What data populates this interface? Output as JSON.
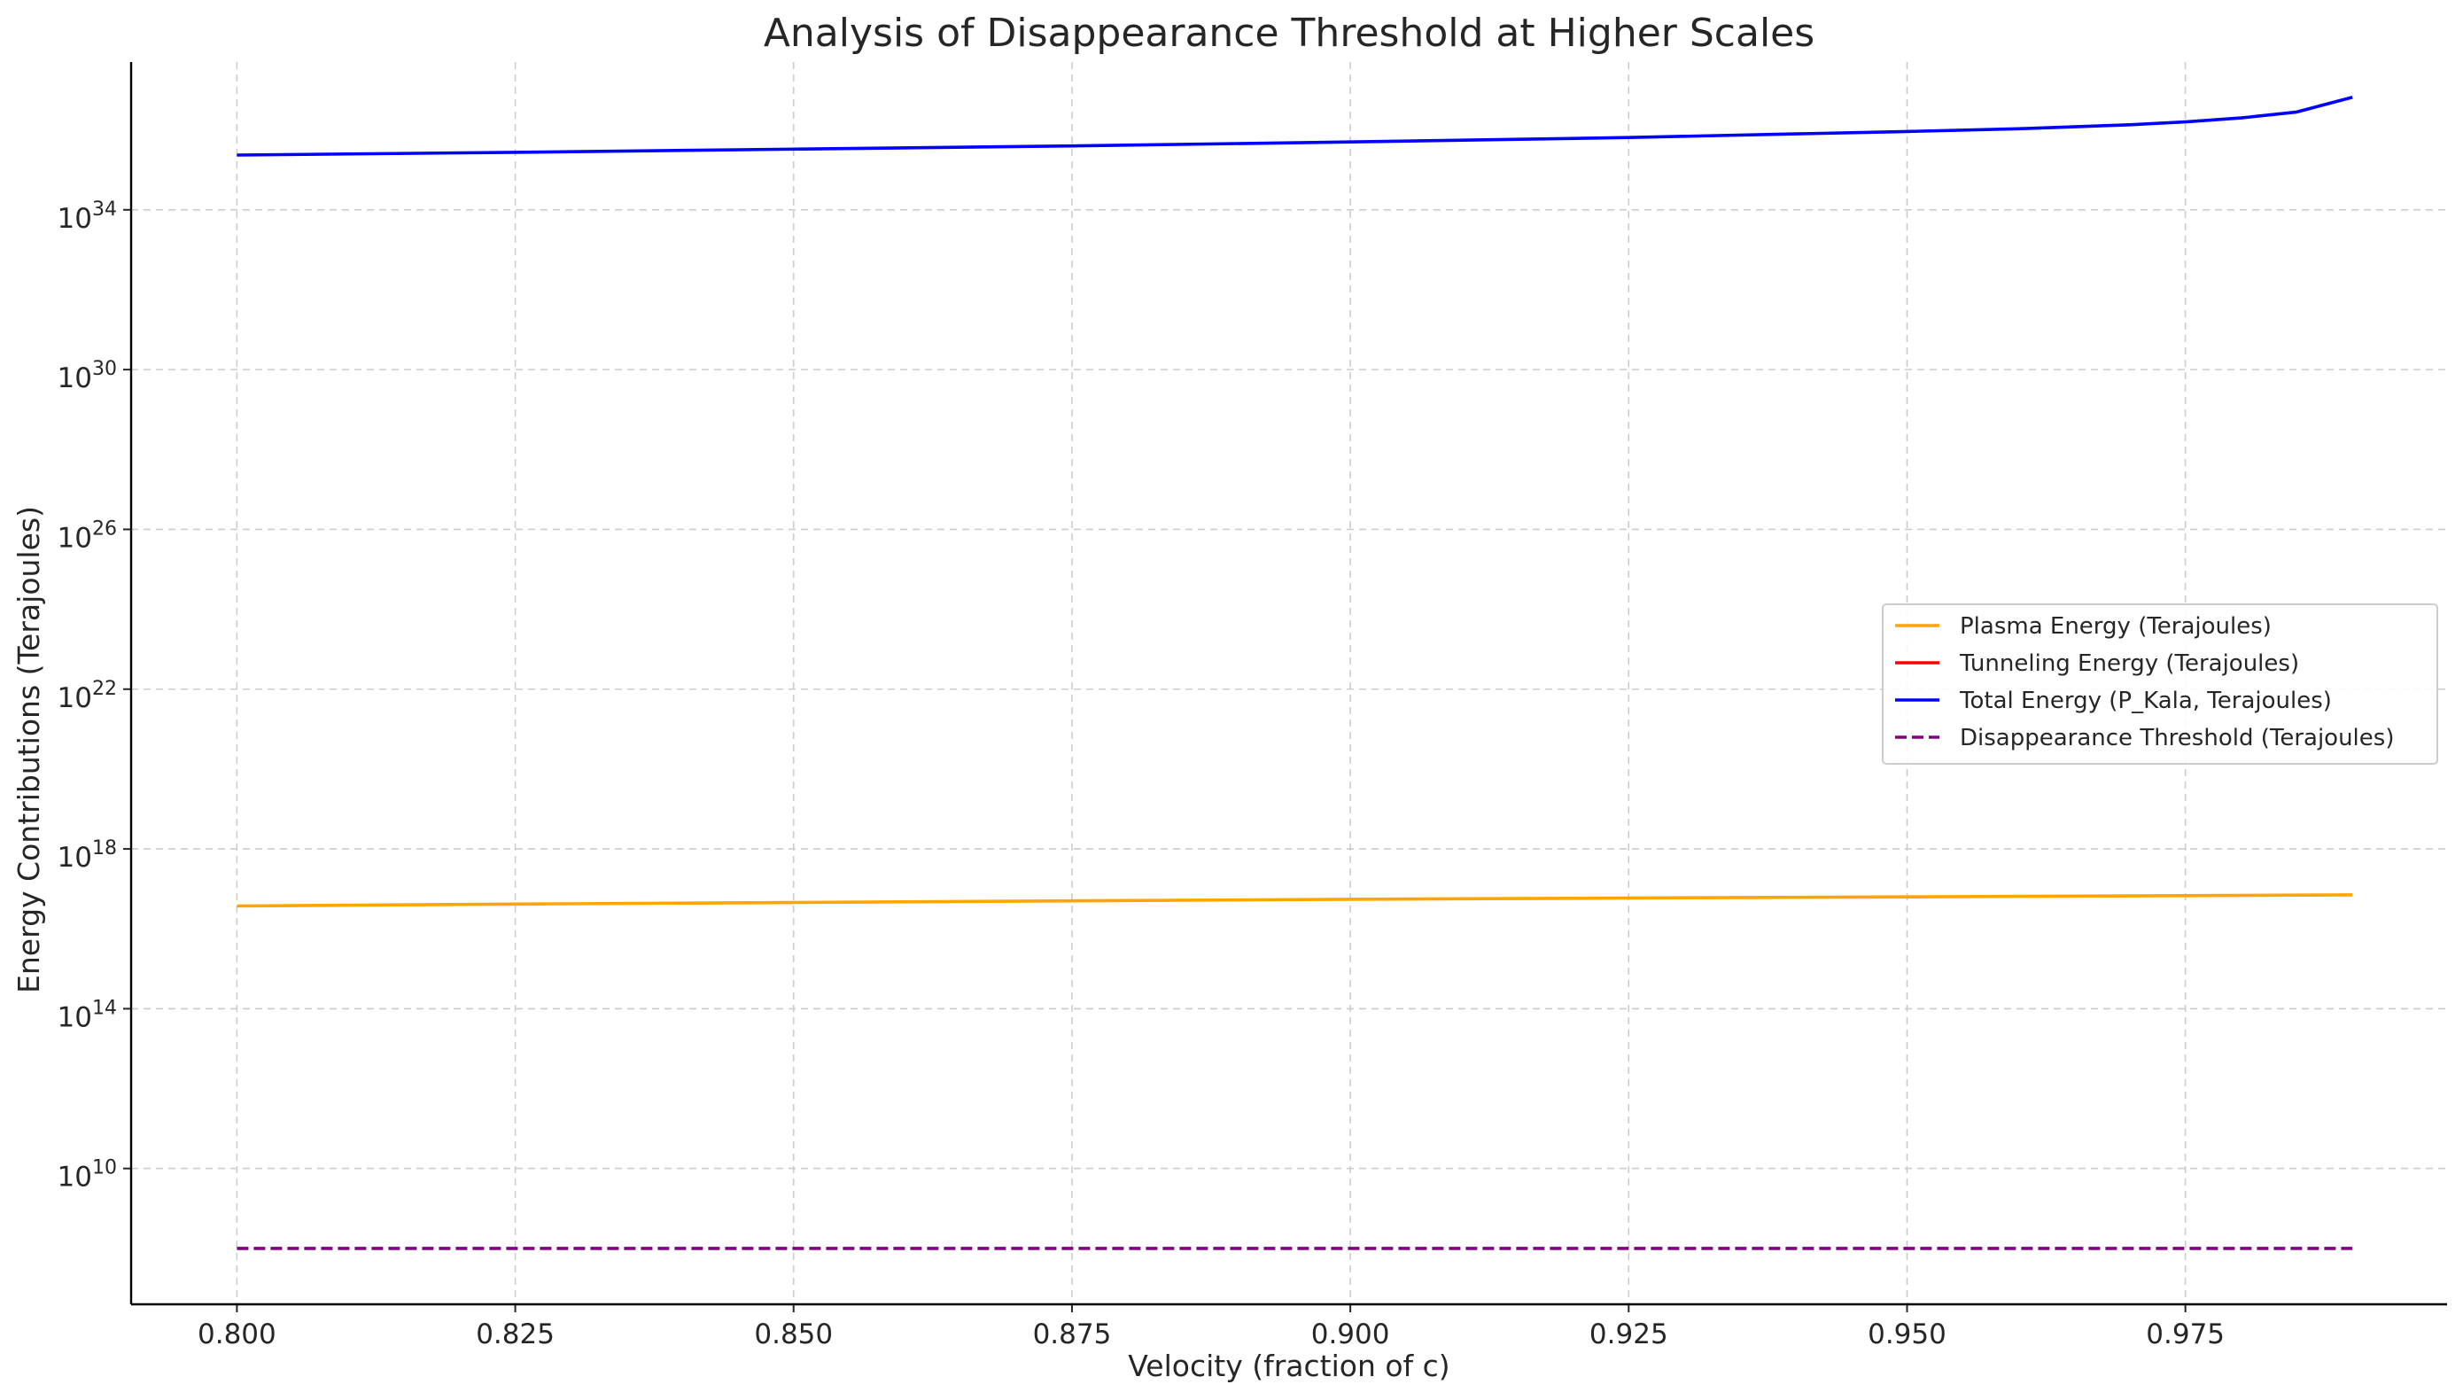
{
  "chart_data": {
    "type": "line",
    "title": "Analysis of Disappearance Threshold at Higher Scales",
    "xlabel": "Velocity (fraction of c)",
    "ylabel": "Energy Contributions (Terajoules)",
    "yscale": "log",
    "xlim": [
      0.7905,
      0.9985
    ],
    "ylim_log10": [
      6.6,
      37.7
    ],
    "grid": true,
    "legend_position": "center-right",
    "x_ticks": [
      "0.800",
      "0.825",
      "0.850",
      "0.875",
      "0.900",
      "0.925",
      "0.950",
      "0.975"
    ],
    "y_ticks": [
      {
        "base": "10",
        "exp": "34"
      },
      {
        "base": "10",
        "exp": "30"
      },
      {
        "base": "10",
        "exp": "26"
      },
      {
        "base": "10",
        "exp": "22"
      },
      {
        "base": "10",
        "exp": "18"
      },
      {
        "base": "10",
        "exp": "14"
      },
      {
        "base": "10",
        "exp": "10"
      }
    ],
    "series": [
      {
        "name": "Plasma Energy (Terajoules)",
        "color": "#ffa500",
        "dash": "solid",
        "x": [
          0.8,
          0.825,
          0.85,
          0.875,
          0.9,
          0.925,
          0.95,
          0.975,
          0.99
        ],
        "log10_y": [
          16.57,
          16.62,
          16.66,
          16.7,
          16.74,
          16.77,
          16.8,
          16.83,
          16.85
        ]
      },
      {
        "name": "Tunneling Energy (Terajoules)",
        "color": "#ff0000",
        "dash": "solid",
        "x": [],
        "log10_y": []
      },
      {
        "name": "Total Energy (P_Kala, Terajoules)",
        "color": "#0000ff",
        "dash": "solid",
        "x": [
          0.8,
          0.825,
          0.85,
          0.875,
          0.9,
          0.925,
          0.95,
          0.96,
          0.97,
          0.975,
          0.98,
          0.985,
          0.99
        ],
        "log10_y": [
          35.37,
          35.44,
          35.52,
          35.6,
          35.7,
          35.81,
          35.96,
          36.03,
          36.13,
          36.2,
          36.3,
          36.45,
          36.82
        ]
      },
      {
        "name": "Disappearance Threshold (Terajoules)",
        "color": "#800080",
        "dash": "dashed",
        "x": [
          0.8,
          0.99
        ],
        "log10_y": [
          8.0,
          8.0
        ]
      }
    ]
  }
}
